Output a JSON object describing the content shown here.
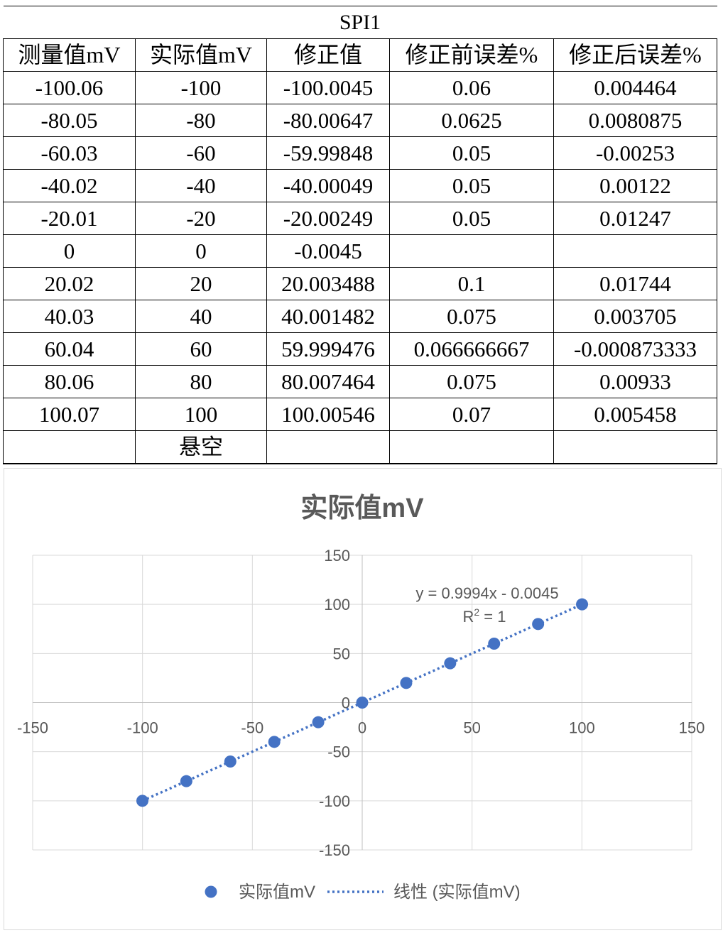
{
  "table": {
    "title": "SPI1",
    "headers": [
      "测量值mV",
      "实际值mV",
      "修正值",
      "修正前误差%",
      "修正后误差%"
    ],
    "rows": [
      [
        "-100.06",
        "-100",
        "-100.0045",
        "0.06",
        "0.004464"
      ],
      [
        "-80.05",
        "-80",
        "-80.00647",
        "0.0625",
        "0.0080875"
      ],
      [
        "-60.03",
        "-60",
        "-59.99848",
        "0.05",
        "-0.00253"
      ],
      [
        "-40.02",
        "-40",
        "-40.00049",
        "0.05",
        "0.00122"
      ],
      [
        "-20.01",
        "-20",
        "-20.00249",
        "0.05",
        "0.01247"
      ],
      [
        "0",
        "0",
        "-0.0045",
        "",
        ""
      ],
      [
        "20.02",
        "20",
        "20.003488",
        "0.1",
        "0.01744"
      ],
      [
        "40.03",
        "40",
        "40.001482",
        "0.075",
        "0.003705"
      ],
      [
        "60.04",
        "60",
        "59.999476",
        "0.066666667",
        "-0.000873333"
      ],
      [
        "80.06",
        "80",
        "80.007464",
        "0.075",
        "0.00933"
      ],
      [
        "100.07",
        "100",
        "100.00546",
        "0.07",
        "0.005458"
      ],
      [
        "",
        "悬空",
        "",
        "",
        ""
      ]
    ]
  },
  "chart_data": {
    "type": "scatter",
    "title": "实际值mV",
    "series": [
      {
        "name": "实际值mV",
        "x": [
          -100.06,
          -80.05,
          -60.03,
          -40.02,
          -20.01,
          0,
          20.02,
          40.03,
          60.04,
          80.06,
          100.07
        ],
        "y": [
          -100,
          -80,
          -60,
          -40,
          -20,
          0,
          20,
          40,
          60,
          80,
          100
        ],
        "color": "#4472C4"
      }
    ],
    "trendline": {
      "name": "线性 (实际值mV)",
      "type": "linear",
      "slope": 0.9994,
      "intercept": -0.0045,
      "equation": "y = 0.9994x - 0.0045",
      "r2_prefix": "R",
      "r2_sup": "2",
      "r2_suffix": " = 1",
      "color": "#4472C4"
    },
    "xlim": [
      -150,
      150
    ],
    "ylim": [
      -150,
      150
    ],
    "xticks": [
      -150,
      -100,
      -50,
      0,
      50,
      100,
      150
    ],
    "yticks": [
      -150,
      -100,
      -50,
      0,
      50,
      100,
      150
    ],
    "grid": true,
    "legend": "bottom",
    "xlabel": "",
    "ylabel": ""
  }
}
